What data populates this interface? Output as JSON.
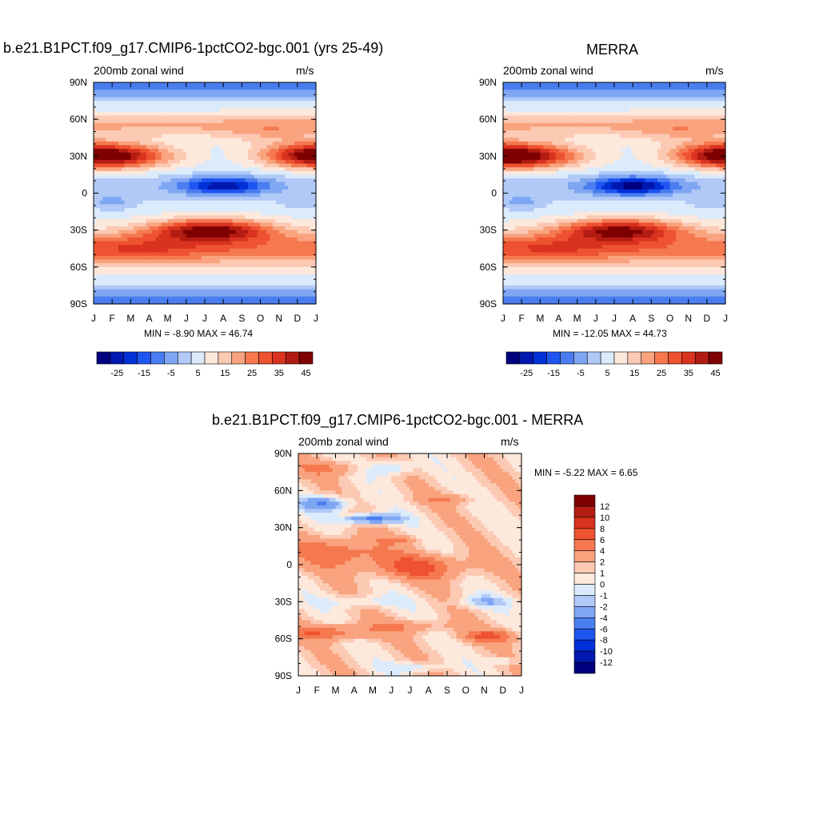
{
  "panels": [
    {
      "title": "b.e21.B1PCT.f09_g17.CMIP6-1pctCO2-bgc.001 (yrs 25-49)",
      "left_label": "200mb zonal wind",
      "right_label": "m/s",
      "minmax": "MIN =  -8.90 MAX =  46.74"
    },
    {
      "title": "MERRA",
      "left_label": "200mb zonal wind",
      "right_label": "m/s",
      "minmax": "MIN = -12.05 MAX =  44.73"
    },
    {
      "title": "b.e21.B1PCT.f09_g17.CMIP6-1pctCO2-bgc.001 - MERRA",
      "left_label": "200mb zonal wind",
      "right_label": "m/s",
      "minmax": "MIN =  -5.22 MAX =   6.65"
    }
  ],
  "chart_data": [
    {
      "type": "heatmap",
      "title": "b.e21.B1PCT.f09_g17.CMIP6-1pctCO2-bgc.001 (yrs 25-49)",
      "subtitle_left": "200mb zonal wind",
      "subtitle_right": "m/s",
      "x_ticks": [
        "J",
        "F",
        "M",
        "A",
        "M",
        "J",
        "J",
        "A",
        "S",
        "O",
        "N",
        "D",
        "J"
      ],
      "y_ticks": [
        "90N",
        "60N",
        "30N",
        "0",
        "30S",
        "60S",
        "90S"
      ],
      "colorbar_labels": [
        "-25",
        "-15",
        "-5",
        "5",
        "15",
        "25",
        "35",
        "45"
      ],
      "colorbar_colors": [
        "#00007f",
        "#0018b0",
        "#0030d8",
        "#1f55f0",
        "#4a7df0",
        "#7ea6f2",
        "#b1c9f7",
        "#dcebfb",
        "#fde8dc",
        "#fcc9b3",
        "#f9a37f",
        "#f5784f",
        "#ee5230",
        "#d9321f",
        "#b21c12",
        "#7f0000"
      ],
      "min": -8.9,
      "max": 46.74
    },
    {
      "type": "heatmap",
      "title": "MERRA",
      "subtitle_left": "200mb zonal wind",
      "subtitle_right": "m/s",
      "x_ticks": [
        "J",
        "F",
        "M",
        "A",
        "M",
        "J",
        "J",
        "A",
        "S",
        "O",
        "N",
        "D",
        "J"
      ],
      "y_ticks": [
        "90N",
        "60N",
        "30N",
        "0",
        "30S",
        "60S",
        "90S"
      ],
      "colorbar_labels": [
        "-25",
        "-15",
        "-5",
        "5",
        "15",
        "25",
        "35",
        "45"
      ],
      "colorbar_colors": [
        "#00007f",
        "#0018b0",
        "#0030d8",
        "#1f55f0",
        "#4a7df0",
        "#7ea6f2",
        "#b1c9f7",
        "#dcebfb",
        "#fde8dc",
        "#fcc9b3",
        "#f9a37f",
        "#f5784f",
        "#ee5230",
        "#d9321f",
        "#b21c12",
        "#7f0000"
      ],
      "min": -12.05,
      "max": 44.73
    },
    {
      "type": "heatmap",
      "title": "b.e21.B1PCT.f09_g17.CMIP6-1pctCO2-bgc.001 - MERRA",
      "subtitle_left": "200mb zonal wind",
      "subtitle_right": "m/s",
      "x_ticks": [
        "J",
        "F",
        "M",
        "A",
        "M",
        "J",
        "J",
        "A",
        "S",
        "O",
        "N",
        "D",
        "J"
      ],
      "y_ticks": [
        "90N",
        "60N",
        "30N",
        "0",
        "30S",
        "60S",
        "90S"
      ],
      "colorbar_labels": [
        "12",
        "10",
        "8",
        "6",
        "4",
        "2",
        "1",
        "0",
        "-1",
        "-2",
        "-4",
        "-6",
        "-8",
        "-10",
        "-12"
      ],
      "colorbar_colors": [
        "#7f0000",
        "#b21c12",
        "#d9321f",
        "#ee5230",
        "#f5784f",
        "#f9a37f",
        "#fcc9b3",
        "#fde8dc",
        "#dcebfb",
        "#b1c9f7",
        "#7ea6f2",
        "#4a7df0",
        "#1f55f0",
        "#0030d8",
        "#0018b0",
        "#00007f"
      ],
      "min": -5.22,
      "max": 6.65
    }
  ]
}
